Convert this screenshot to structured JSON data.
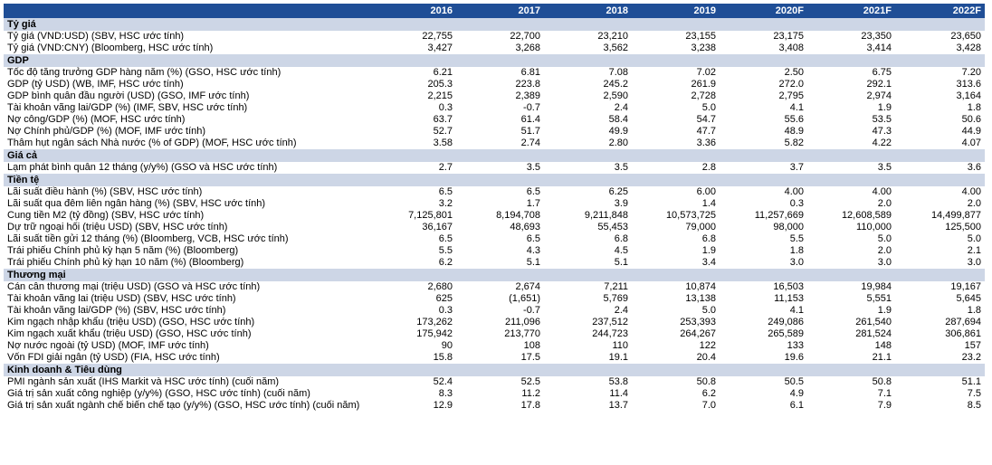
{
  "header": {
    "first": "",
    "years": [
      "2016",
      "2017",
      "2018",
      "2019",
      "2020F",
      "2021F",
      "2022F"
    ]
  },
  "sections": [
    {
      "title": "Tỷ giá",
      "rows": [
        {
          "label": "Tỷ giá (VND:USD) (SBV, HSC ước tính)",
          "values": [
            "22,755",
            "22,700",
            "23,210",
            "23,155",
            "23,175",
            "23,350",
            "23,650"
          ]
        },
        {
          "label": "Tỷ giá (VND:CNY) (Bloomberg, HSC ước tính)",
          "values": [
            "3,427",
            "3,268",
            "3,562",
            "3,238",
            "3,408",
            "3,414",
            "3,428"
          ]
        }
      ]
    },
    {
      "title": "GDP",
      "rows": [
        {
          "label": "Tốc độ tăng trưởng GDP hàng năm (%) (GSO, HSC ước tính)",
          "values": [
            "6.21",
            "6.81",
            "7.08",
            "7.02",
            "2.50",
            "6.75",
            "7.20"
          ]
        },
        {
          "label": "GDP (tỷ USD) (WB, IMF, HSC ước tính)",
          "values": [
            "205.3",
            "223.8",
            "245.2",
            "261.9",
            "272.0",
            "292.1",
            "313.6"
          ]
        },
        {
          "label": "GDP bình quân đầu người (USD) (GSO, IMF ước tính)",
          "values": [
            "2,215",
            "2,389",
            "2,590",
            "2,728",
            "2,795",
            "2,974",
            "3,164"
          ]
        },
        {
          "label": "Tài khoản vãng lai/GDP (%) (IMF, SBV, HSC ước tính)",
          "values": [
            "0.3",
            "-0.7",
            "2.4",
            "5.0",
            "4.1",
            "1.9",
            "1.8"
          ]
        },
        {
          "label": "Nợ công/GDP (%) (MOF, HSC ước tính)",
          "values": [
            "63.7",
            "61.4",
            "58.4",
            "54.7",
            "55.6",
            "53.5",
            "50.6"
          ]
        },
        {
          "label": "Nợ Chính phủ/GDP (%) (MOF, IMF ước tính)",
          "values": [
            "52.7",
            "51.7",
            "49.9",
            "47.7",
            "48.9",
            "47.3",
            "44.9"
          ]
        },
        {
          "label": "Thâm hụt ngân sách Nhà nước (% of GDP) (MOF, HSC ước tính)",
          "values": [
            "3.58",
            "2.74",
            "2.80",
            "3.36",
            "5.82",
            "4.22",
            "4.07"
          ]
        }
      ]
    },
    {
      "title": "Giá cả",
      "rows": [
        {
          "label": "Lạm phát bình quân 12 tháng (y/y%) (GSO và HSC ước tính)",
          "values": [
            "2.7",
            "3.5",
            "3.5",
            "2.8",
            "3.7",
            "3.5",
            "3.6"
          ]
        }
      ]
    },
    {
      "title": "Tiền tệ",
      "rows": [
        {
          "label": "Lãi suất điều hành (%) (SBV, HSC ước tính)",
          "values": [
            "6.5",
            "6.5",
            "6.25",
            "6.00",
            "4.00",
            "4.00",
            "4.00"
          ]
        },
        {
          "label": "Lãi suất qua đêm liên ngân hàng (%) (SBV, HSC ước tính)",
          "values": [
            "3.2",
            "1.7",
            "3.9",
            "1.4",
            "0.3",
            "2.0",
            "2.0"
          ]
        },
        {
          "label": "Cung tiền M2 (tỷ đồng) (SBV, HSC ước tính)",
          "values": [
            "7,125,801",
            "8,194,708",
            "9,211,848",
            "10,573,725",
            "11,257,669",
            "12,608,589",
            "14,499,877"
          ]
        },
        {
          "label": "Dự trữ ngoại hối (triệu USD) (SBV, HSC ước tính)",
          "values": [
            "36,167",
            "48,693",
            "55,453",
            "79,000",
            "98,000",
            "110,000",
            "125,500"
          ]
        },
        {
          "label": "Lãi suất tiền gửi 12 tháng (%) (Bloomberg, VCB, HSC ước tính)",
          "values": [
            "6.5",
            "6.5",
            "6.8",
            "6.8",
            "5.5",
            "5.0",
            "5.0"
          ]
        },
        {
          "label": "Trái phiếu Chính phủ kỳ hạn 5 năm (%) (Bloomberg)",
          "values": [
            "5.5",
            "4.3",
            "4.5",
            "1.9",
            "1.8",
            "2.0",
            "2.1"
          ]
        },
        {
          "label": "Trái phiếu Chính phủ kỳ hạn 10 năm (%) (Bloomberg)",
          "values": [
            "6.2",
            "5.1",
            "5.1",
            "3.4",
            "3.0",
            "3.0",
            "3.0"
          ]
        }
      ]
    },
    {
      "title": "Thương mại",
      "rows": [
        {
          "label": "Cán cân thương mại (triệu USD) (GSO và HSC ước tính)",
          "values": [
            "2,680",
            "2,674",
            "7,211",
            "10,874",
            "16,503",
            "19,984",
            "19,167"
          ]
        },
        {
          "label": "Tài khoản vãng lai (triệu USD) (SBV, HSC ước tính)",
          "values": [
            "625",
            "(1,651)",
            "5,769",
            "13,138",
            "11,153",
            "5,551",
            "5,645"
          ]
        },
        {
          "label": "Tài khoản vãng lai/GDP (%) (SBV, HSC ước tính)",
          "values": [
            "0.3",
            "-0.7",
            "2.4",
            "5.0",
            "4.1",
            "1.9",
            "1.8"
          ]
        },
        {
          "label": "Kim ngạch nhập khẩu (triệu USD) (GSO, HSC ước tính)",
          "values": [
            "173,262",
            "211,096",
            "237,512",
            "253,393",
            "249,086",
            "261,540",
            "287,694"
          ]
        },
        {
          "label": "Kim ngạch xuất khẩu (triệu USD) (GSO, HSC ước tính)",
          "values": [
            "175,942",
            "213,770",
            "244,723",
            "264,267",
            "265,589",
            "281,524",
            "306,861"
          ]
        },
        {
          "label": "Nợ nước ngoài (tỷ USD) (MOF, IMF ước tính)",
          "values": [
            "90",
            "108",
            "110",
            "122",
            "133",
            "148",
            "157"
          ]
        },
        {
          "label": "Vốn FDI giải ngân (tỷ USD) (FIA, HSC ước tính)",
          "values": [
            "15.8",
            "17.5",
            "19.1",
            "20.4",
            "19.6",
            "21.1",
            "23.2"
          ]
        }
      ]
    },
    {
      "title": "Kinh doanh & Tiêu dùng",
      "rows": [
        {
          "label": "PMI ngành sản xuất (IHS Markit và HSC ước tính) (cuối năm)",
          "values": [
            "52.4",
            "52.5",
            "53.8",
            "50.8",
            "50.5",
            "50.8",
            "51.1"
          ]
        },
        {
          "label": "Giá trị sản xuất công nghiệp (y/y%) (GSO, HSC ước tính) (cuối năm)",
          "values": [
            "8.3",
            "11.2",
            "11.4",
            "6.2",
            "4.9",
            "7.1",
            "7.5"
          ]
        },
        {
          "label": "Giá trị sản xuất ngành chế biến chế tạo (y/y%) (GSO, HSC ước tính) (cuối năm)",
          "values": [
            "12.9",
            "17.8",
            "13.7",
            "7.0",
            "6.1",
            "7.9",
            "8.5"
          ]
        }
      ]
    }
  ]
}
